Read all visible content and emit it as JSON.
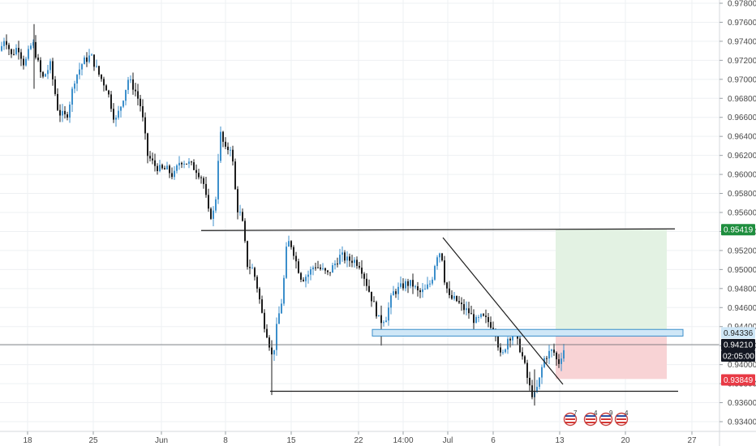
{
  "chart_data": {
    "type": "candlestick",
    "colors": {
      "up": "#3c8fcb",
      "down": "#1d1d1d",
      "grid": "#eef0f3",
      "target_zone": "#e3f2e3",
      "stop_zone": "#f8d3d5",
      "support_box": "#cfe7f7",
      "support_box_border": "#3c8fcb",
      "tag_green": "#1e8e3e",
      "tag_red": "#e83a45",
      "tag_black": "#131722"
    },
    "y_axis": {
      "min": 0.932,
      "max": 0.978,
      "ticks": [
        "0.97800",
        "0.97600",
        "0.97400",
        "0.97200",
        "0.97000",
        "0.96800",
        "0.96600",
        "0.96400",
        "0.96200",
        "0.96000",
        "0.95800",
        "0.95600",
        "0.95400",
        "0.95200",
        "0.95000",
        "0.94800",
        "0.94600",
        "0.94400",
        "0.94200",
        "0.94000",
        "0.93800",
        "0.93600",
        "0.93400"
      ]
    },
    "x_axis": {
      "labels": [
        "18",
        "25",
        "Jun",
        "8",
        "15",
        "22",
        "14:00",
        "Jul",
        "6",
        "13",
        "20",
        "27"
      ]
    },
    "price_tags": {
      "target": "0.95419",
      "support": "0.94336",
      "current": "0.94210",
      "countdown": "02:05:00",
      "stop": "0.93849"
    },
    "levels": {
      "resistance": 0.9541,
      "support_top": 0.9437,
      "support_bottom": 0.943,
      "current": 0.9421,
      "entry": 0.9433,
      "target": 0.95419,
      "stop": 0.93849,
      "bottom": 0.9372
    },
    "calendar_events": [
      "7",
      "4",
      "9",
      "4"
    ]
  }
}
